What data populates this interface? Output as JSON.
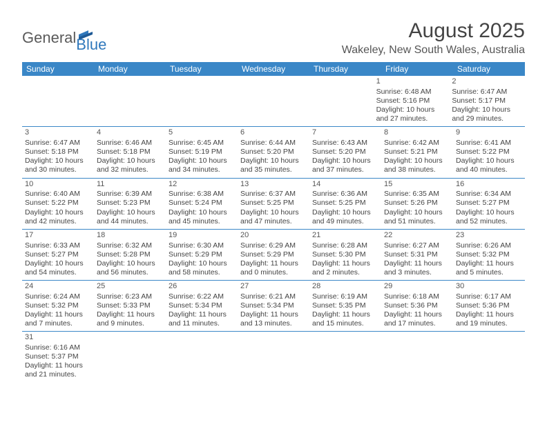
{
  "brand": {
    "part1": "General",
    "part2": "Blue"
  },
  "title": "August 2025",
  "location": "Wakeley, New South Wales, Australia",
  "colors": {
    "header_bg": "#3a87c7",
    "header_text": "#ffffff",
    "row_border": "#3a87c7",
    "body_text": "#444444",
    "brand_gray": "#5a5a5a",
    "brand_blue": "#2f78bc"
  },
  "dayNames": [
    "Sunday",
    "Monday",
    "Tuesday",
    "Wednesday",
    "Thursday",
    "Friday",
    "Saturday"
  ],
  "weeks": [
    [
      null,
      null,
      null,
      null,
      null,
      {
        "n": "1",
        "sunrise": "Sunrise: 6:48 AM",
        "sunset": "Sunset: 5:16 PM",
        "daylight": "Daylight: 10 hours and 27 minutes."
      },
      {
        "n": "2",
        "sunrise": "Sunrise: 6:47 AM",
        "sunset": "Sunset: 5:17 PM",
        "daylight": "Daylight: 10 hours and 29 minutes."
      }
    ],
    [
      {
        "n": "3",
        "sunrise": "Sunrise: 6:47 AM",
        "sunset": "Sunset: 5:18 PM",
        "daylight": "Daylight: 10 hours and 30 minutes."
      },
      {
        "n": "4",
        "sunrise": "Sunrise: 6:46 AM",
        "sunset": "Sunset: 5:18 PM",
        "daylight": "Daylight: 10 hours and 32 minutes."
      },
      {
        "n": "5",
        "sunrise": "Sunrise: 6:45 AM",
        "sunset": "Sunset: 5:19 PM",
        "daylight": "Daylight: 10 hours and 34 minutes."
      },
      {
        "n": "6",
        "sunrise": "Sunrise: 6:44 AM",
        "sunset": "Sunset: 5:20 PM",
        "daylight": "Daylight: 10 hours and 35 minutes."
      },
      {
        "n": "7",
        "sunrise": "Sunrise: 6:43 AM",
        "sunset": "Sunset: 5:20 PM",
        "daylight": "Daylight: 10 hours and 37 minutes."
      },
      {
        "n": "8",
        "sunrise": "Sunrise: 6:42 AM",
        "sunset": "Sunset: 5:21 PM",
        "daylight": "Daylight: 10 hours and 38 minutes."
      },
      {
        "n": "9",
        "sunrise": "Sunrise: 6:41 AM",
        "sunset": "Sunset: 5:22 PM",
        "daylight": "Daylight: 10 hours and 40 minutes."
      }
    ],
    [
      {
        "n": "10",
        "sunrise": "Sunrise: 6:40 AM",
        "sunset": "Sunset: 5:22 PM",
        "daylight": "Daylight: 10 hours and 42 minutes."
      },
      {
        "n": "11",
        "sunrise": "Sunrise: 6:39 AM",
        "sunset": "Sunset: 5:23 PM",
        "daylight": "Daylight: 10 hours and 44 minutes."
      },
      {
        "n": "12",
        "sunrise": "Sunrise: 6:38 AM",
        "sunset": "Sunset: 5:24 PM",
        "daylight": "Daylight: 10 hours and 45 minutes."
      },
      {
        "n": "13",
        "sunrise": "Sunrise: 6:37 AM",
        "sunset": "Sunset: 5:25 PM",
        "daylight": "Daylight: 10 hours and 47 minutes."
      },
      {
        "n": "14",
        "sunrise": "Sunrise: 6:36 AM",
        "sunset": "Sunset: 5:25 PM",
        "daylight": "Daylight: 10 hours and 49 minutes."
      },
      {
        "n": "15",
        "sunrise": "Sunrise: 6:35 AM",
        "sunset": "Sunset: 5:26 PM",
        "daylight": "Daylight: 10 hours and 51 minutes."
      },
      {
        "n": "16",
        "sunrise": "Sunrise: 6:34 AM",
        "sunset": "Sunset: 5:27 PM",
        "daylight": "Daylight: 10 hours and 52 minutes."
      }
    ],
    [
      {
        "n": "17",
        "sunrise": "Sunrise: 6:33 AM",
        "sunset": "Sunset: 5:27 PM",
        "daylight": "Daylight: 10 hours and 54 minutes."
      },
      {
        "n": "18",
        "sunrise": "Sunrise: 6:32 AM",
        "sunset": "Sunset: 5:28 PM",
        "daylight": "Daylight: 10 hours and 56 minutes."
      },
      {
        "n": "19",
        "sunrise": "Sunrise: 6:30 AM",
        "sunset": "Sunset: 5:29 PM",
        "daylight": "Daylight: 10 hours and 58 minutes."
      },
      {
        "n": "20",
        "sunrise": "Sunrise: 6:29 AM",
        "sunset": "Sunset: 5:29 PM",
        "daylight": "Daylight: 11 hours and 0 minutes."
      },
      {
        "n": "21",
        "sunrise": "Sunrise: 6:28 AM",
        "sunset": "Sunset: 5:30 PM",
        "daylight": "Daylight: 11 hours and 2 minutes."
      },
      {
        "n": "22",
        "sunrise": "Sunrise: 6:27 AM",
        "sunset": "Sunset: 5:31 PM",
        "daylight": "Daylight: 11 hours and 3 minutes."
      },
      {
        "n": "23",
        "sunrise": "Sunrise: 6:26 AM",
        "sunset": "Sunset: 5:32 PM",
        "daylight": "Daylight: 11 hours and 5 minutes."
      }
    ],
    [
      {
        "n": "24",
        "sunrise": "Sunrise: 6:24 AM",
        "sunset": "Sunset: 5:32 PM",
        "daylight": "Daylight: 11 hours and 7 minutes."
      },
      {
        "n": "25",
        "sunrise": "Sunrise: 6:23 AM",
        "sunset": "Sunset: 5:33 PM",
        "daylight": "Daylight: 11 hours and 9 minutes."
      },
      {
        "n": "26",
        "sunrise": "Sunrise: 6:22 AM",
        "sunset": "Sunset: 5:34 PM",
        "daylight": "Daylight: 11 hours and 11 minutes."
      },
      {
        "n": "27",
        "sunrise": "Sunrise: 6:21 AM",
        "sunset": "Sunset: 5:34 PM",
        "daylight": "Daylight: 11 hours and 13 minutes."
      },
      {
        "n": "28",
        "sunrise": "Sunrise: 6:19 AM",
        "sunset": "Sunset: 5:35 PM",
        "daylight": "Daylight: 11 hours and 15 minutes."
      },
      {
        "n": "29",
        "sunrise": "Sunrise: 6:18 AM",
        "sunset": "Sunset: 5:36 PM",
        "daylight": "Daylight: 11 hours and 17 minutes."
      },
      {
        "n": "30",
        "sunrise": "Sunrise: 6:17 AM",
        "sunset": "Sunset: 5:36 PM",
        "daylight": "Daylight: 11 hours and 19 minutes."
      }
    ],
    [
      {
        "n": "31",
        "sunrise": "Sunrise: 6:16 AM",
        "sunset": "Sunset: 5:37 PM",
        "daylight": "Daylight: 11 hours and 21 minutes."
      },
      null,
      null,
      null,
      null,
      null,
      null
    ]
  ]
}
